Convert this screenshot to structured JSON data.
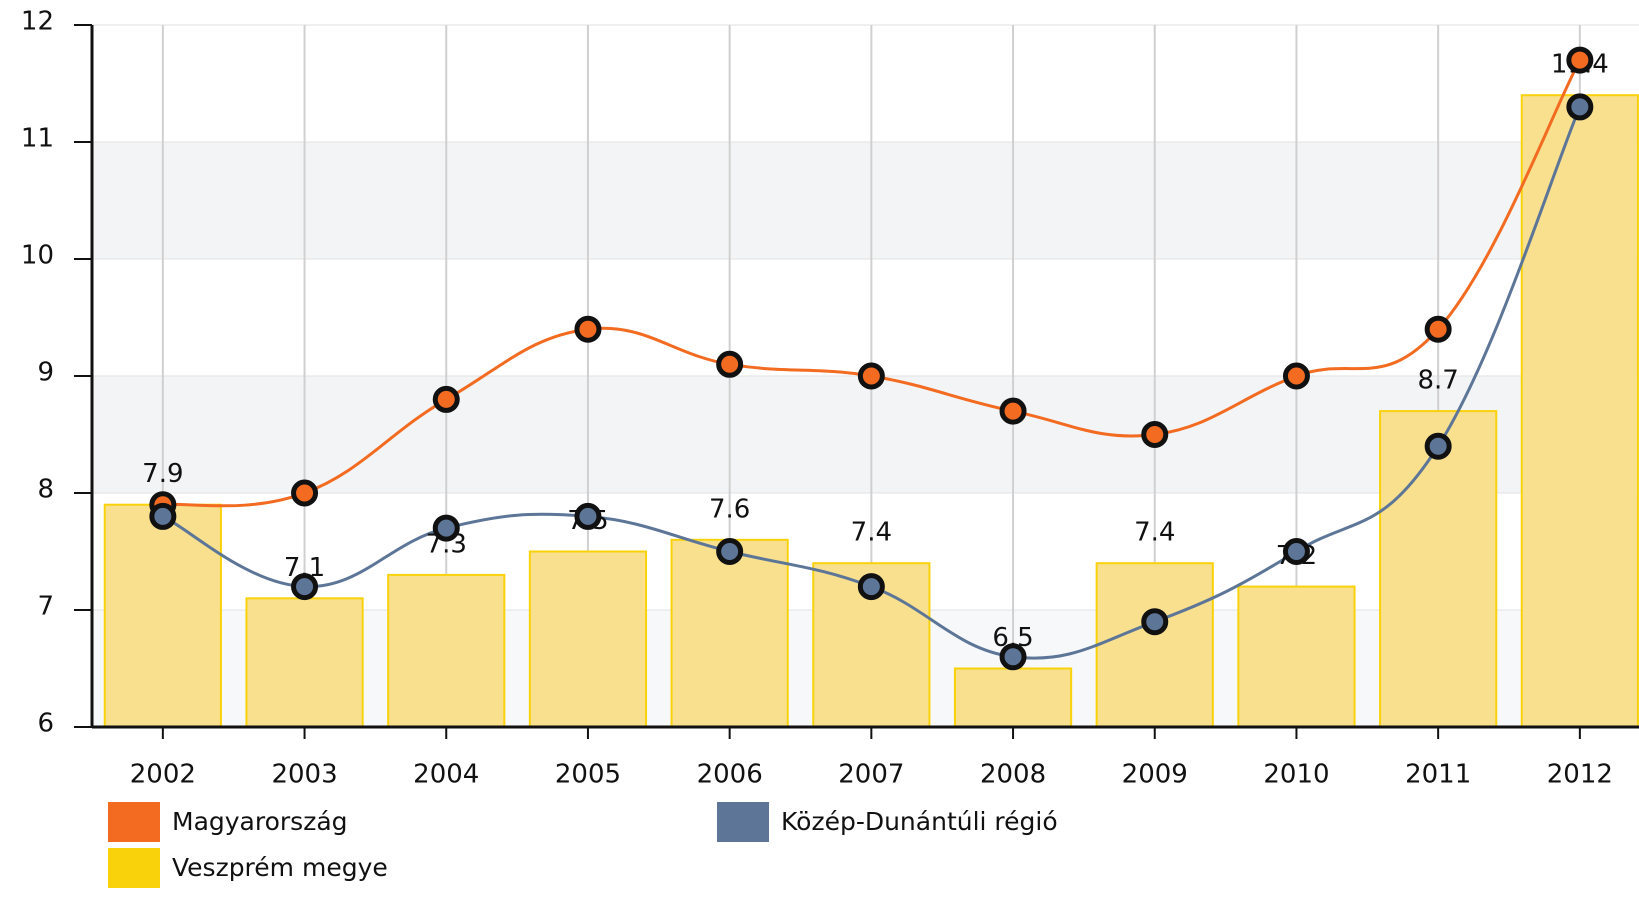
{
  "chart_data": {
    "type": "bar",
    "categories": [
      "2002",
      "2003",
      "2004",
      "2005",
      "2006",
      "2007",
      "2008",
      "2009",
      "2010",
      "2011",
      "2012"
    ],
    "values": [
      7.9,
      7.1,
      7.3,
      7.5,
      7.6,
      7.4,
      6.5,
      7.4,
      7.2,
      8.7,
      11.4
    ],
    "name": "Veszprém megye",
    "color": "#f9d20b",
    "series": [
      {
        "name": "Magyarország",
        "color": "#f26b21",
        "values": [
          7.9,
          8.0,
          8.8,
          9.4,
          9.1,
          9.0,
          8.7,
          8.5,
          9.0,
          9.4,
          11.7
        ]
      },
      {
        "name": "Közép-Dunántúli régió",
        "color": "#5d7698",
        "values": [
          7.8,
          7.2,
          7.7,
          7.8,
          7.5,
          7.2,
          6.6,
          6.9,
          7.5,
          8.4,
          11.3
        ]
      }
    ],
    "ylim": [
      6,
      12
    ],
    "yticks": [
      6,
      7,
      8,
      9,
      10,
      11,
      12
    ],
    "grid": true
  }
}
